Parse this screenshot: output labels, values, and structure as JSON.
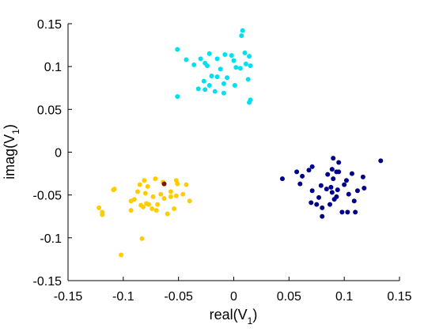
{
  "chart_data": {
    "type": "scatter",
    "title": "",
    "xlabel": {
      "main": "real(V",
      "sub": "1",
      "close": ")"
    },
    "ylabel": {
      "main": "imag(V",
      "sub": "1",
      "close": ")"
    },
    "xlim": [
      -0.15,
      0.15
    ],
    "ylim": [
      -0.15,
      0.15
    ],
    "grid": false,
    "xticks": [
      -0.15,
      -0.1,
      -0.05,
      0,
      0.05,
      0.1,
      0.15
    ],
    "xtick_labels": [
      "-0.15",
      "-0.1",
      "-0.05",
      "0",
      "0.05",
      "0.1",
      "0.15"
    ],
    "yticks": [
      -0.15,
      -0.1,
      -0.05,
      0,
      0.05,
      0.1,
      0.15
    ],
    "ytick_labels": [
      "-0.15",
      "-0.1",
      "-0.05",
      "0",
      "0.05",
      "0.1",
      "0.15"
    ],
    "series": [
      {
        "color": "#00e0f0",
        "points": [
          [
            0.008,
            0.142
          ],
          [
            0.007,
            0.136
          ],
          [
            -0.051,
            0.12
          ],
          [
            -0.022,
            0.115
          ],
          [
            -0.008,
            0.114
          ],
          [
            0.01,
            0.116
          ],
          [
            -0.002,
            0.113
          ],
          [
            0.014,
            0.112
          ],
          [
            -0.043,
            0.108
          ],
          [
            -0.03,
            0.109
          ],
          [
            -0.015,
            0.109
          ],
          [
            0.0,
            0.107
          ],
          [
            -0.026,
            0.104
          ],
          [
            -0.024,
            0.101
          ],
          [
            0.011,
            0.103
          ],
          [
            0.015,
            0.101
          ],
          [
            -0.036,
            0.102
          ],
          [
            0.002,
            0.099
          ],
          [
            0.006,
            0.098
          ],
          [
            -0.012,
            0.097
          ],
          [
            -0.02,
            0.089
          ],
          [
            -0.015,
            0.088
          ],
          [
            -0.006,
            0.087
          ],
          [
            0.013,
            0.085
          ],
          [
            -0.027,
            0.083
          ],
          [
            -0.009,
            0.08
          ],
          [
            -0.022,
            0.078
          ],
          [
            0.001,
            0.078
          ],
          [
            -0.032,
            0.074
          ],
          [
            -0.026,
            0.073
          ],
          [
            -0.017,
            0.071
          ],
          [
            -0.009,
            0.069
          ],
          [
            -0.051,
            0.065
          ],
          [
            0.015,
            0.061
          ],
          [
            0.014,
            0.058
          ]
        ]
      },
      {
        "color": "#00008b",
        "points": [
          [
            0.133,
            -0.01
          ],
          [
            0.09,
            -0.007
          ],
          [
            0.095,
            -0.012
          ],
          [
            0.071,
            -0.017
          ],
          [
            0.089,
            -0.02
          ],
          [
            0.057,
            -0.023
          ],
          [
            0.068,
            -0.021
          ],
          [
            0.093,
            -0.023
          ],
          [
            0.095,
            -0.023
          ],
          [
            0.107,
            -0.025
          ],
          [
            0.085,
            -0.026
          ],
          [
            0.117,
            -0.029
          ],
          [
            0.062,
            -0.028
          ],
          [
            0.044,
            -0.031
          ],
          [
            0.09,
            -0.031
          ],
          [
            0.102,
            -0.033
          ],
          [
            0.1,
            -0.038
          ],
          [
            0.06,
            -0.037
          ],
          [
            0.079,
            -0.039
          ],
          [
            0.088,
            -0.041
          ],
          [
            0.084,
            -0.043
          ],
          [
            0.094,
            -0.044
          ],
          [
            0.112,
            -0.045
          ],
          [
            0.118,
            -0.042
          ],
          [
            0.071,
            -0.045
          ],
          [
            0.089,
            -0.047
          ],
          [
            0.104,
            -0.049
          ],
          [
            0.093,
            -0.052
          ],
          [
            0.077,
            -0.053
          ],
          [
            0.091,
            -0.055
          ],
          [
            0.109,
            -0.057
          ],
          [
            0.07,
            -0.059
          ],
          [
            0.075,
            -0.061
          ],
          [
            0.087,
            -0.061
          ],
          [
            0.08,
            -0.065
          ],
          [
            0.098,
            -0.07
          ],
          [
            0.103,
            -0.07
          ],
          [
            0.11,
            -0.07
          ],
          [
            0.08,
            -0.075
          ]
        ]
      },
      {
        "color": "#ffcc00",
        "points": [
          [
            -0.071,
            -0.031
          ],
          [
            -0.052,
            -0.033
          ],
          [
            -0.064,
            -0.035
          ],
          [
            -0.081,
            -0.033
          ],
          [
            -0.051,
            -0.037
          ],
          [
            -0.085,
            -0.038
          ],
          [
            -0.043,
            -0.038
          ],
          [
            -0.078,
            -0.04
          ],
          [
            -0.108,
            -0.043
          ],
          [
            -0.109,
            -0.044
          ],
          [
            -0.087,
            -0.046
          ],
          [
            -0.057,
            -0.046
          ],
          [
            -0.08,
            -0.048
          ],
          [
            -0.046,
            -0.049
          ],
          [
            -0.066,
            -0.049
          ],
          [
            -0.052,
            -0.051
          ],
          [
            -0.073,
            -0.052
          ],
          [
            -0.057,
            -0.052
          ],
          [
            -0.063,
            -0.054
          ],
          [
            -0.09,
            -0.055
          ],
          [
            -0.093,
            -0.057
          ],
          [
            -0.04,
            -0.057
          ],
          [
            -0.079,
            -0.06
          ],
          [
            -0.077,
            -0.061
          ],
          [
            -0.084,
            -0.062
          ],
          [
            -0.069,
            -0.061
          ],
          [
            -0.082,
            -0.064
          ],
          [
            -0.122,
            -0.065
          ],
          [
            -0.074,
            -0.066
          ],
          [
            -0.054,
            -0.066
          ],
          [
            -0.07,
            -0.068
          ],
          [
            -0.093,
            -0.068
          ],
          [
            -0.119,
            -0.07
          ],
          [
            -0.119,
            -0.073
          ],
          [
            -0.06,
            -0.072
          ],
          [
            -0.083,
            -0.101
          ],
          [
            -0.102,
            -0.12
          ]
        ]
      },
      {
        "color": "#7a1500",
        "points": [
          [
            -0.063,
            -0.037
          ]
        ]
      }
    ]
  }
}
